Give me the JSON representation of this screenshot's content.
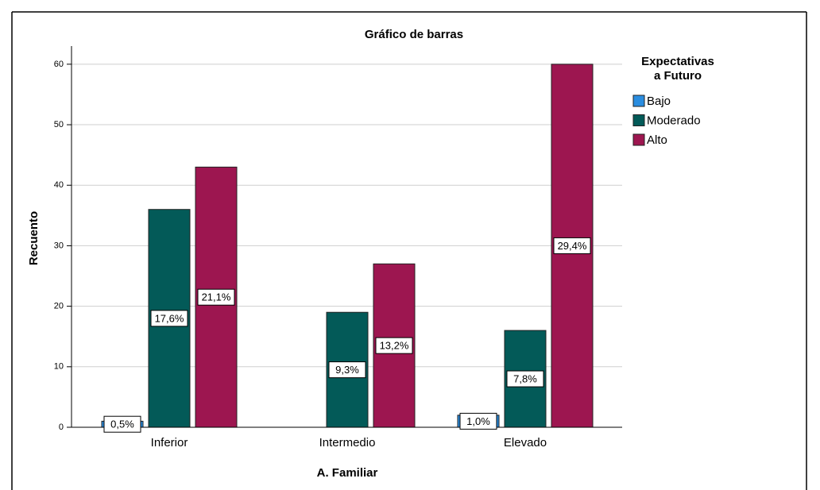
{
  "chart_data": {
    "type": "bar",
    "title": "Gráfico de barras",
    "xlabel": "A. Familiar",
    "ylabel": "Recuento",
    "legend_title": [
      "Expectativas",
      "a Futuro"
    ],
    "legend": "right",
    "categories": [
      "Inferior",
      "Intermedio",
      "Elevado"
    ],
    "series": [
      {
        "name": "Bajo",
        "color": "#2a8de0",
        "values": [
          1,
          0,
          2
        ],
        "percent_labels": [
          "0,5%",
          null,
          "1,0%"
        ]
      },
      {
        "name": "Moderado",
        "color": "#035a58",
        "values": [
          36,
          19,
          16
        ],
        "percent_labels": [
          "17,6%",
          "9,3%",
          "7,8%"
        ]
      },
      {
        "name": "Alto",
        "color": "#9d1650",
        "values": [
          43,
          27,
          60
        ],
        "percent_labels": [
          "21,1%",
          "13,2%",
          "29,4%"
        ]
      }
    ],
    "ylim": [
      0,
      63
    ],
    "yticks": [
      0,
      10,
      20,
      30,
      40,
      50,
      60
    ],
    "grid": true
  }
}
